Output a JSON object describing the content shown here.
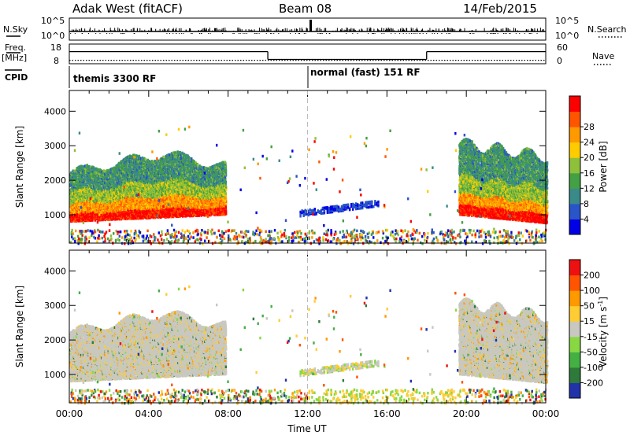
{
  "header": {
    "radar": "Adak West (fitACF)",
    "beam": "Beam 08",
    "date": "14/Feb/2015"
  },
  "sky_panel": {
    "left_label": "N.Sky",
    "right_label": "N.Search",
    "left_ticks": [
      "10^5",
      "10^0"
    ],
    "right_ticks": [
      "10^5",
      "10^0"
    ]
  },
  "freq_panel": {
    "left_label_1": "Freq.",
    "left_label_2": "[MHz]",
    "right_label": "Nave",
    "left_ticks": [
      "18",
      "8"
    ],
    "right_ticks": [
      "60",
      "0"
    ],
    "segments": [
      {
        "start_hour": 0,
        "end_hour": 10,
        "freq_mhz": 15
      },
      {
        "start_hour": 10,
        "end_hour": 18,
        "freq_mhz": 10.5
      },
      {
        "start_hour": 18,
        "end_hour": 24,
        "freq_mhz": 15
      }
    ],
    "nave_level": 12
  },
  "cpid_panel": {
    "label": "CPID",
    "modes": [
      {
        "start_hour": 0,
        "label": "themis 3300 RF"
      },
      {
        "start_hour": 12,
        "label": "normal (fast) 151 RF"
      }
    ]
  },
  "chart_data": [
    {
      "type": "heatmap",
      "panel": "power",
      "ylabel": "Slant Range [km]",
      "xlabel": "",
      "ylim": [
        180,
        4600
      ],
      "xlim": [
        0,
        24
      ],
      "yticks": [
        "1000",
        "2000",
        "3000",
        "4000"
      ],
      "colorbar": {
        "label": "Power [dB]",
        "ticks": [
          "4",
          "8",
          "12",
          "16",
          "20",
          "24",
          "28"
        ],
        "colors": [
          "#0000e6",
          "#2a55c8",
          "#3a8a8a",
          "#44a044",
          "#8ec03c",
          "#ffcc00",
          "#ff9900",
          "#ff5500",
          "#ff0000"
        ]
      },
      "regions": [
        {
          "start_hour": 0,
          "end_hour": 8,
          "description_band_km": [
            800,
            3000
          ],
          "peak_db": 28
        },
        {
          "start_hour": 11.5,
          "end_hour": 15.5,
          "description_band_km": [
            1000,
            1300
          ],
          "peak_db": 6
        },
        {
          "start_hour": 19.5,
          "end_hour": 24,
          "description_band_km": [
            800,
            3300
          ],
          "peak_db": 28
        }
      ]
    },
    {
      "type": "heatmap",
      "panel": "velocity",
      "ylabel": "Slant Range [km]",
      "xlabel": "Time UT",
      "ylim": [
        180,
        4600
      ],
      "xlim": [
        0,
        24
      ],
      "yticks": [
        "1000",
        "2000",
        "3000",
        "4000"
      ],
      "xticks": [
        "00:00",
        "04:00",
        "08:00",
        "12:00",
        "16:00",
        "20:00",
        "00:00"
      ],
      "colorbar": {
        "label": "Velocity [m s",
        "label_sup": "-1",
        "label_end": "]",
        "ticks": [
          "200",
          "100",
          "50",
          "15",
          "-15",
          "-50",
          "-100",
          "-200"
        ],
        "colors": [
          "#2233aa",
          "#2e7a3a",
          "#44b044",
          "#88d844",
          "#c8c8c0",
          "#ffcc33",
          "#ff9900",
          "#ff5500",
          "#ee1111"
        ]
      }
    }
  ]
}
